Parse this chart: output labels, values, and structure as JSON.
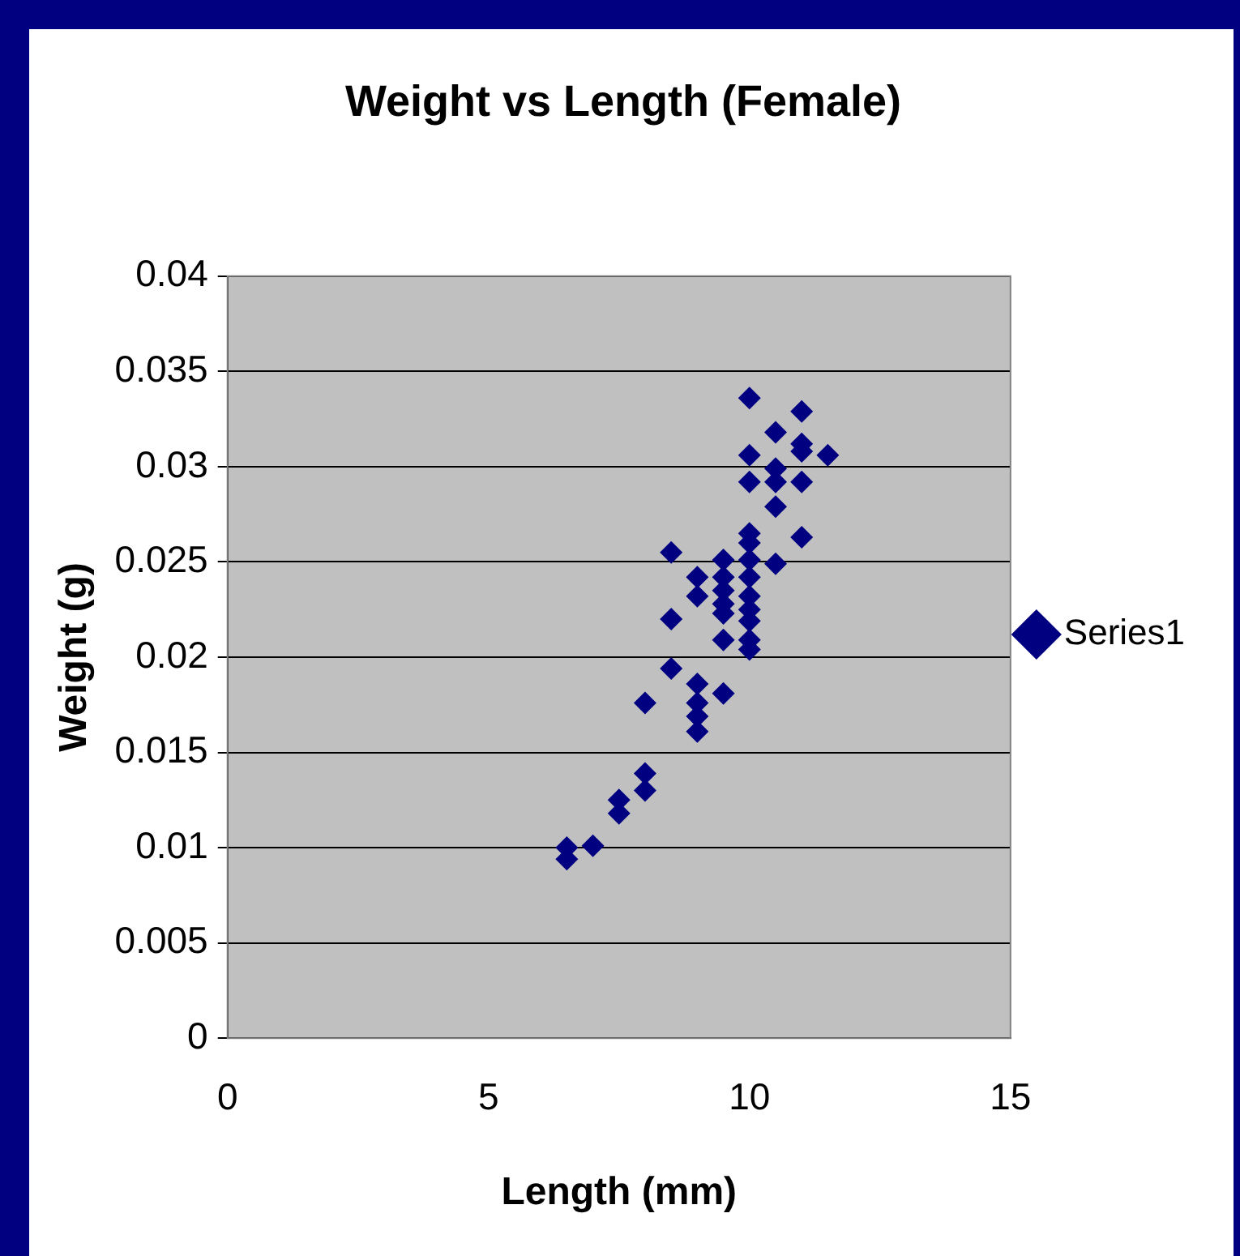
{
  "chart_data": {
    "type": "scatter",
    "title": "Weight vs Length (Female)",
    "xlabel": "Length (mm)",
    "ylabel": "Weight (g)",
    "xlim": [
      0,
      15
    ],
    "xticks": [
      0,
      5,
      10,
      15
    ],
    "ylim": [
      0,
      0.04
    ],
    "yticks": [
      0,
      0.005,
      0.01,
      0.015,
      0.02,
      0.025,
      0.03,
      0.035,
      0.04
    ],
    "grid": "y",
    "legend": "right",
    "marker": "diamond",
    "series": [
      {
        "name": "Series1",
        "color": "#000080",
        "x": [
          6.5,
          6.5,
          7,
          7.5,
          7.5,
          8,
          8,
          8,
          8.5,
          8.5,
          8.5,
          9,
          9,
          9,
          9,
          9,
          9,
          9.5,
          9.5,
          9.5,
          9.5,
          9.5,
          9.5,
          9.5,
          10,
          10,
          10,
          10,
          10,
          10,
          10,
          10,
          10,
          10,
          10,
          10,
          10.5,
          10.5,
          10.5,
          10.5,
          10.5,
          11,
          11,
          11,
          11,
          11,
          11.5
        ],
        "values": [
          0.01,
          0.0094,
          0.0101,
          0.0125,
          0.0118,
          0.0139,
          0.013,
          0.0176,
          0.0255,
          0.022,
          0.0194,
          0.0242,
          0.0232,
          0.0186,
          0.0176,
          0.0169,
          0.0161,
          0.0251,
          0.0242,
          0.0235,
          0.0228,
          0.0223,
          0.0209,
          0.0181,
          0.0336,
          0.0306,
          0.0292,
          0.0265,
          0.026,
          0.0251,
          0.0242,
          0.0232,
          0.0225,
          0.0219,
          0.0209,
          0.0204,
          0.0318,
          0.0299,
          0.0292,
          0.0279,
          0.0249,
          0.0329,
          0.0312,
          0.0308,
          0.0292,
          0.0263,
          0.0306
        ]
      }
    ]
  }
}
